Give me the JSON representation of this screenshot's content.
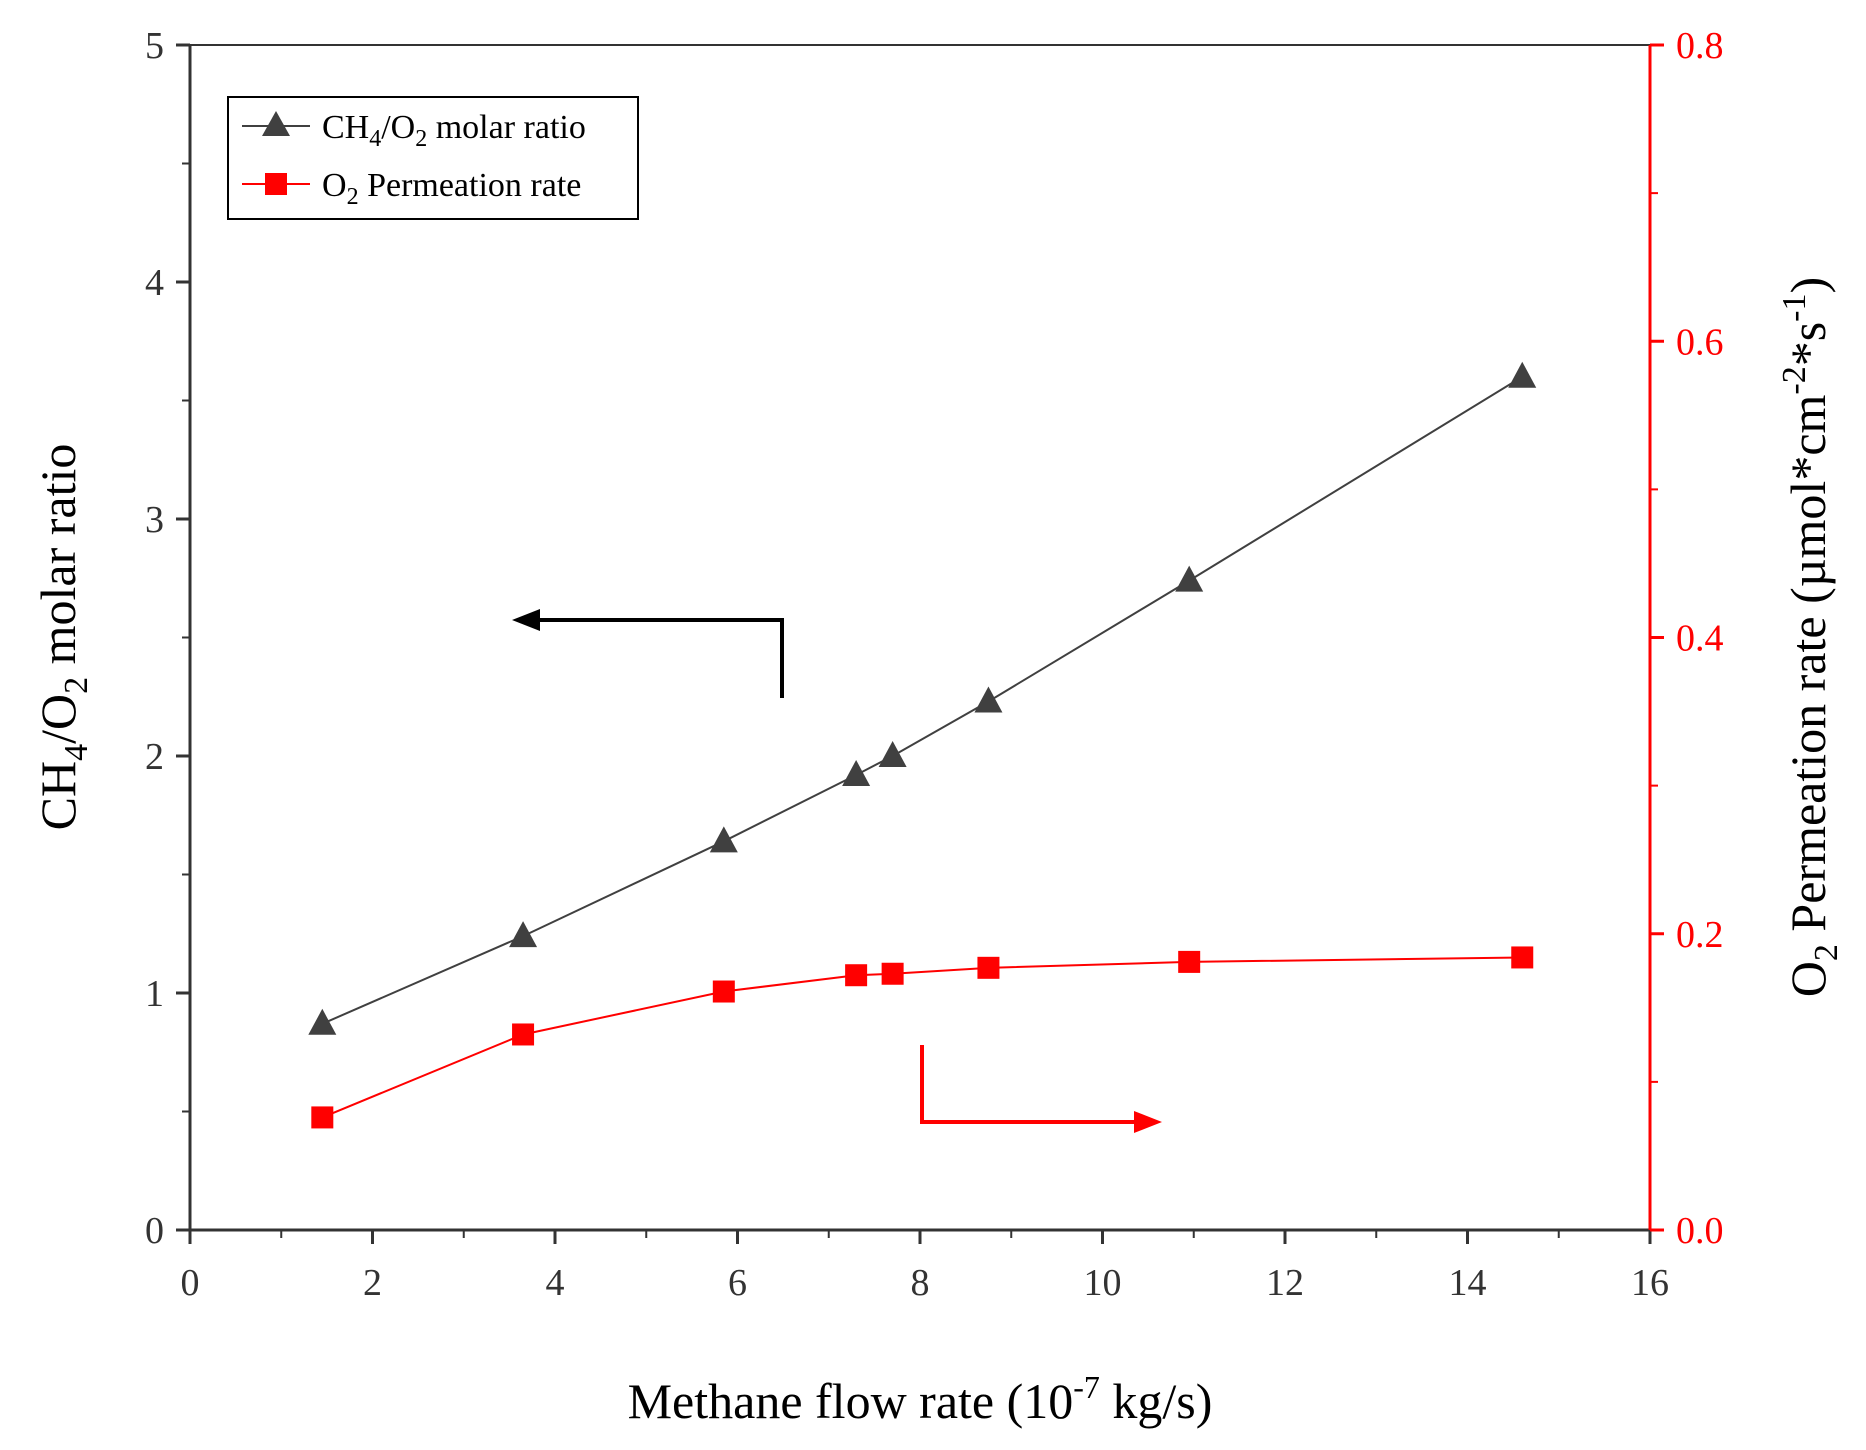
{
  "chart_data": {
    "type": "line",
    "x": [
      1.45,
      3.65,
      5.85,
      7.3,
      7.7,
      8.75,
      10.95,
      14.6
    ],
    "series": [
      {
        "name": "CH4/O2 molar ratio",
        "axis": "left",
        "marker": "triangle",
        "color": "#404040",
        "values": [
          0.87,
          1.24,
          1.64,
          1.92,
          2.0,
          2.23,
          2.74,
          3.6
        ]
      },
      {
        "name": "O2 Permeation rate",
        "axis": "right",
        "marker": "square",
        "color": "#ff0000",
        "values": [
          0.076,
          0.132,
          0.161,
          0.172,
          0.173,
          0.177,
          0.181,
          0.184
        ]
      }
    ],
    "xlim": [
      0,
      16
    ],
    "ylim_left": [
      0,
      5
    ],
    "ylim_right": [
      0,
      0.8
    ],
    "xticks": [
      "0",
      "2",
      "4",
      "6",
      "8",
      "10",
      "12",
      "14",
      "16"
    ],
    "yticks_left": [
      "0",
      "1",
      "2",
      "3",
      "4",
      "5"
    ],
    "yticks_right": [
      "0.0",
      "0.2",
      "0.4",
      "0.6",
      "0.8"
    ],
    "xlabel": {
      "main": "Methane flow rate (10",
      "sup": "-7",
      "tail": " kg/s)"
    },
    "ylabel_left": {
      "p1": "CH",
      "s1": "4",
      "p2": "/O",
      "s2": "2",
      "p3": " molar ratio"
    },
    "ylabel_right": {
      "p1": "O",
      "s1": "2",
      "p2": " Permeation rate (µmol*cm",
      "s2": "-2",
      "p3": "*s",
      "s3": "-1",
      "p4": ")"
    },
    "legend": {
      "position": "top-left",
      "entries": [
        {
          "p1": "CH",
          "s1": "4",
          "p2": "/O",
          "s2": "2",
          "p3": " molar ratio"
        },
        {
          "p1": "O",
          "s1": "2",
          "p2": " Permeation rate"
        }
      ]
    },
    "annotations": [
      {
        "type": "arrow",
        "points_to": "left axis",
        "color": "#000000",
        "anchor_x": 6.5
      },
      {
        "type": "arrow",
        "points_to": "right axis",
        "color": "#ff0000",
        "anchor_x": 8.0
      }
    ]
  }
}
